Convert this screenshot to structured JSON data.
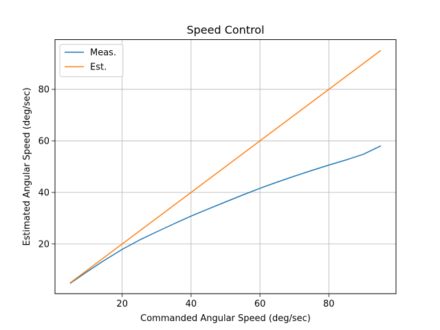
{
  "chart_data": {
    "type": "line",
    "title": "Speed Control",
    "xlabel": "Commanded Angular Speed (deg/sec)",
    "ylabel": "Estimated Angular Speed (deg/sec)",
    "xlim": [
      0.5,
      99.5
    ],
    "ylim": [
      0.7,
      99.3
    ],
    "xticks": [
      20,
      40,
      60,
      80
    ],
    "yticks": [
      20,
      40,
      60,
      80
    ],
    "grid": true,
    "legend_position": "top-left",
    "series": [
      {
        "name": "Meas.",
        "color": "#1f77b4",
        "x": [
          5,
          10,
          15,
          20,
          25,
          30,
          35,
          40,
          45,
          50,
          55,
          60,
          65,
          70,
          75,
          80,
          85,
          90,
          95
        ],
        "y": [
          4.8,
          9.4,
          13.8,
          17.9,
          21.5,
          24.7,
          27.8,
          30.8,
          33.6,
          36.3,
          39.0,
          41.6,
          44.0,
          46.3,
          48.5,
          50.6,
          52.6,
          54.8,
          58.0
        ]
      },
      {
        "name": "Est.",
        "color": "#ff7f0e",
        "x": [
          5,
          95
        ],
        "y": [
          5,
          95
        ]
      }
    ]
  }
}
